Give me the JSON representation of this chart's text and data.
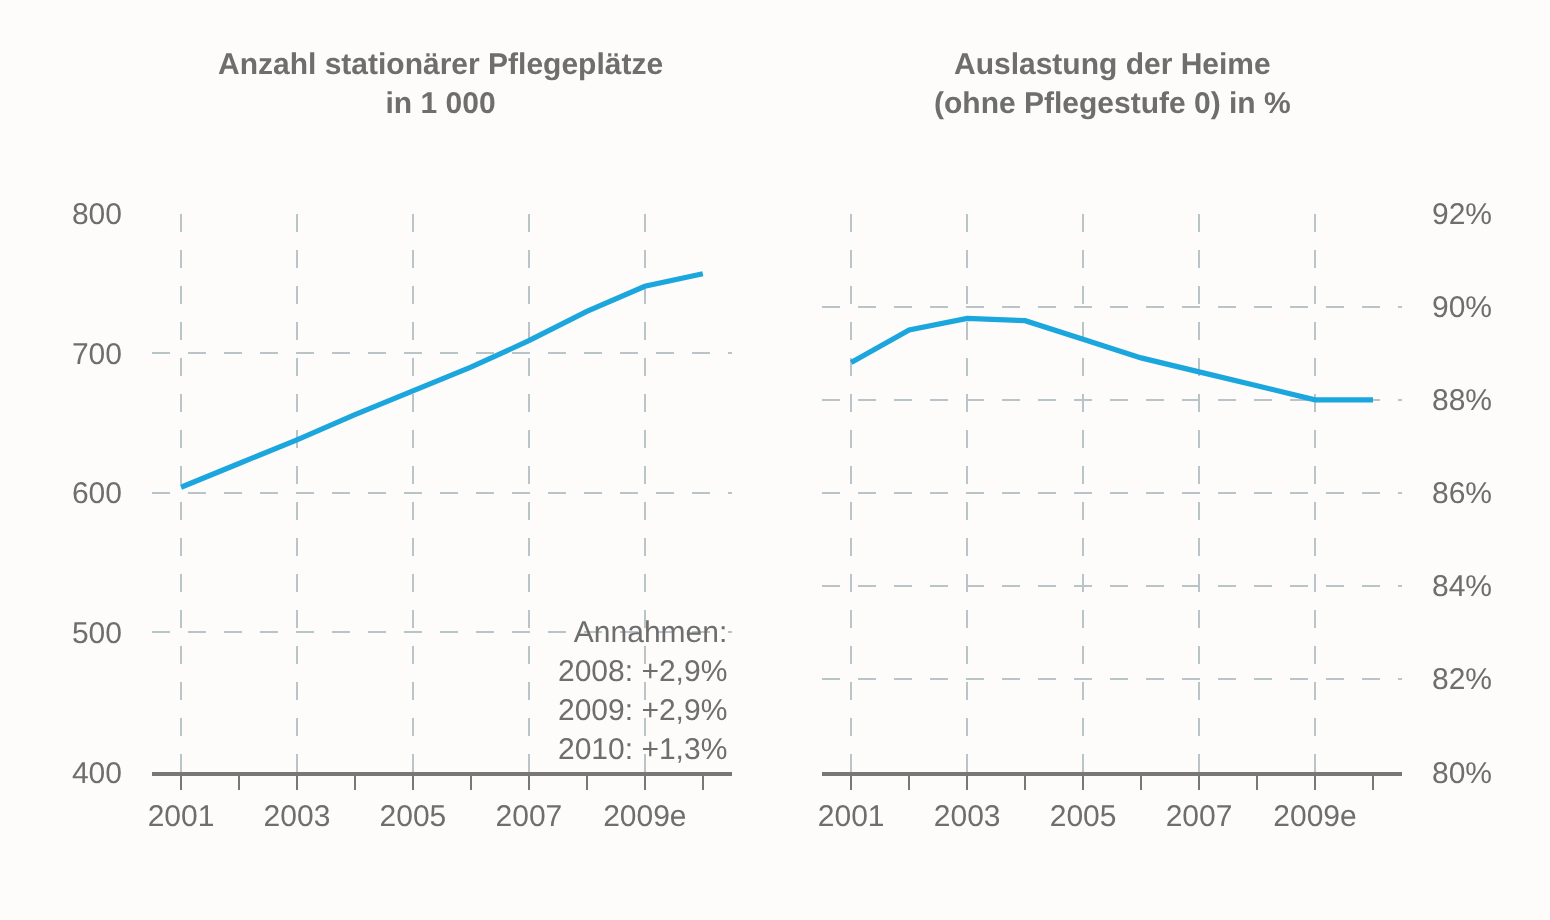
{
  "chart_data": [
    {
      "type": "line",
      "title": "Anzahl stationärer Pflegeplätze\nin 1 000",
      "x": [
        2001,
        2002,
        2003,
        2004,
        2005,
        2006,
        2007,
        2008,
        2009,
        2010
      ],
      "series": [
        {
          "color": "#1ba6de",
          "values": [
            604,
            621,
            638,
            656,
            673,
            690,
            709,
            730,
            748,
            757
          ]
        }
      ],
      "xlim": [
        2000.5,
        2010.5
      ],
      "xticks": [
        2001,
        {
          "value": 2002,
          "label": null
        },
        2003,
        {
          "value": 2004,
          "label": null
        },
        2005,
        {
          "value": 2006,
          "label": null
        },
        2007,
        {
          "value": 2008,
          "label": null
        },
        {
          "value": 2009,
          "label": "2009e"
        },
        {
          "value": 2010,
          "label": null
        }
      ],
      "ylim": [
        400,
        800
      ],
      "yticks": [
        400,
        500,
        600,
        700,
        800
      ],
      "grid": true,
      "line_style": "solid",
      "marker": "none",
      "annotations": [
        "Annahmen:\n2008: +2,9%\n2009: +2,9%\n2010: +1,3%"
      ]
    },
    {
      "type": "line",
      "title": "Auslastung der Heime\n(ohne Pflegestufe 0) in %",
      "x": [
        2001,
        2002,
        2003,
        2004,
        2005,
        2006,
        2007,
        2008,
        2009,
        2010
      ],
      "series": [
        {
          "color": "#1ba6de",
          "values": [
            88.8,
            89.5,
            89.75,
            89.7,
            89.3,
            88.9,
            88.6,
            88.3,
            88.0,
            88.0
          ]
        }
      ],
      "xlim": [
        2000.5,
        2010.5
      ],
      "xticks": [
        2001,
        {
          "value": 2002,
          "label": null
        },
        2003,
        {
          "value": 2004,
          "label": null
        },
        2005,
        {
          "value": 2006,
          "label": null
        },
        2007,
        {
          "value": 2008,
          "label": null
        },
        {
          "value": 2009,
          "label": "2009e"
        },
        {
          "value": 2010,
          "label": null
        }
      ],
      "ylim": [
        80,
        92
      ],
      "yticks": [
        {
          "value": 80,
          "label": "80%"
        },
        {
          "value": 82,
          "label": "82%"
        },
        {
          "value": 84,
          "label": "84%"
        },
        {
          "value": 86,
          "label": "86%"
        },
        {
          "value": 88,
          "label": "88%"
        },
        {
          "value": 90,
          "label": "90%"
        },
        {
          "value": 92,
          "label": "92%"
        }
      ],
      "grid": true,
      "line_style": "solid",
      "marker": "none"
    }
  ]
}
